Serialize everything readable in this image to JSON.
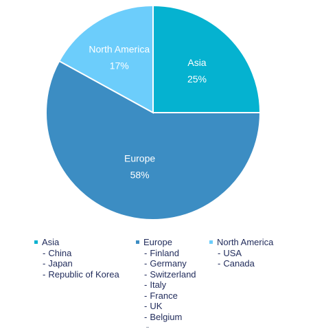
{
  "chart_data": {
    "type": "pie",
    "title": "",
    "series": [
      {
        "name": "Asia",
        "value": 25,
        "label": "25%",
        "color": "#05b2d0"
      },
      {
        "name": "Europe",
        "value": 58,
        "label": "58%",
        "color": "#3c8dc3"
      },
      {
        "name": "North America",
        "value": 17,
        "label": "17%",
        "color": "#6ccdfb"
      }
    ],
    "legend_placement": "bottom"
  },
  "legend": {
    "groups": [
      {
        "name": "Asia",
        "color": "#05b2d0",
        "items": [
          "China",
          "Japan",
          "Republic of Korea"
        ]
      },
      {
        "name": "Europe",
        "color": "#3c8dc3",
        "items": [
          "Finland",
          "Germany",
          "Switzerland",
          "Italy",
          "France",
          "UK",
          "Belgium"
        ]
      },
      {
        "name": "North America",
        "color": "#6ccdfb",
        "items": [
          "USA",
          "Canada"
        ]
      }
    ]
  }
}
